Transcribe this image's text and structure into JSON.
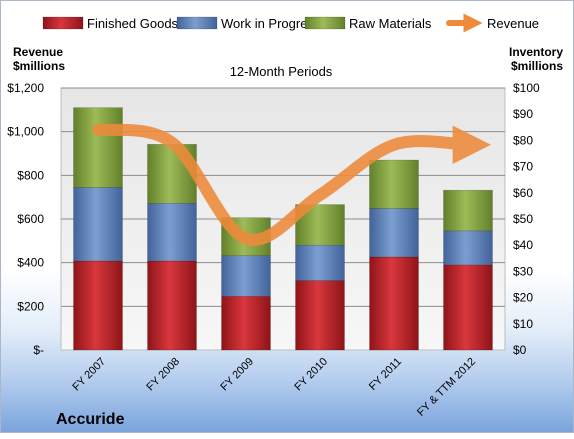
{
  "company": "Accuride",
  "chart_data": {
    "type": "bar",
    "stacked": true,
    "title": "12-Month Periods",
    "categories": [
      "FY 2007",
      "FY 2008",
      "FY 2009",
      "FY 2010",
      "FY 2011",
      "FY & TTM 2012"
    ],
    "left_axis": {
      "label": "Revenue\n$millions",
      "range": [
        0,
        1200
      ],
      "ticks": [
        0,
        200,
        400,
        600,
        800,
        1000,
        1200
      ],
      "tick_labels": [
        "$-",
        "$200",
        "$400",
        "$600",
        "$800",
        "$1,000",
        "$1,200"
      ]
    },
    "right_axis": {
      "label": "Inventory\n$millions",
      "range": [
        0,
        100
      ],
      "ticks": [
        0,
        10,
        20,
        30,
        40,
        50,
        60,
        70,
        80,
        90,
        100
      ],
      "tick_labels": [
        "$0",
        "$10",
        "$20",
        "$30",
        "$40",
        "$50",
        "$60",
        "$70",
        "$80",
        "$90",
        "$100"
      ]
    },
    "series": [
      {
        "name": "Finished Goods",
        "axis": "right",
        "color": "#c0272d",
        "values": [
          34,
          34,
          20.5,
          26.5,
          35.5,
          32.5
        ]
      },
      {
        "name": "Work in Progress",
        "axis": "right",
        "color": "#5b7fb8",
        "values": [
          28,
          22,
          15.5,
          13.5,
          18.5,
          13
        ]
      },
      {
        "name": "Raw Materials",
        "axis": "right",
        "color": "#7f9e3d",
        "values": [
          30.5,
          22.5,
          14.5,
          15.5,
          18.5,
          15.5
        ]
      },
      {
        "name": "Revenue",
        "type": "line",
        "axis": "left",
        "color": "#ee8a3a",
        "values": [
          1010,
          950,
          510,
          710,
          940,
          940
        ]
      }
    ],
    "grid": true,
    "legend_position": "top"
  }
}
